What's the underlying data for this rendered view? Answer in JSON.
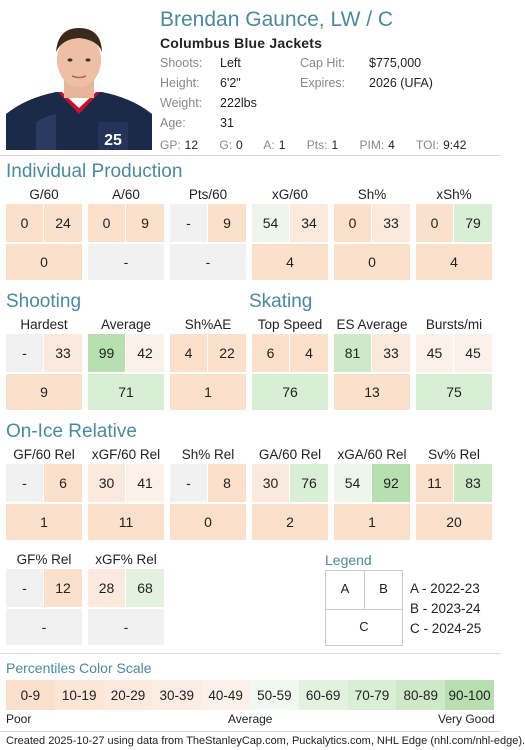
{
  "player": {
    "name": "Brendan Gaunce, LW / C",
    "team": "Columbus Blue Jackets",
    "shoots_label": "Shoots:",
    "shoots": "Left",
    "height_label": "Height:",
    "height": "6'2\"",
    "weight_label": "Weight:",
    "weight": "222lbs",
    "age_label": "Age:",
    "age": "31",
    "caphit_label": "Cap Hit:",
    "caphit": "$775,000",
    "expires_label": "Expires:",
    "expires": "2026 (UFA)",
    "jersey_number": "25"
  },
  "season_stats": {
    "gp_label": "GP:",
    "gp": "12",
    "g_label": "G:",
    "g": "0",
    "a_label": "A:",
    "a": "1",
    "pts_label": "Pts:",
    "pts": "1",
    "pim_label": "PIM:",
    "pim": "4",
    "toi_label": "TOI:",
    "toi": "9:42"
  },
  "sections": {
    "production": "Individual Production",
    "shooting": "Shooting",
    "skating": "Skating",
    "onice": "On-Ice Relative"
  },
  "metrics": {
    "g60": {
      "label": "G/60",
      "a": "0",
      "b": "24",
      "c": "0",
      "ca": "#fbe1cc",
      "cb": "#fbe1cc",
      "cc": "#fbe1cc"
    },
    "a60": {
      "label": "A/60",
      "a": "0",
      "b": "9",
      "c": "-",
      "ca": "#fbe1cc",
      "cb": "#fbe1cc",
      "cc": "#f1f1f1"
    },
    "pts60": {
      "label": "Pts/60",
      "a": "-",
      "b": "9",
      "c": "-",
      "ca": "#f1f1f1",
      "cb": "#fbe1cc",
      "cc": "#f1f1f1"
    },
    "xg60": {
      "label": "xG/60",
      "a": "54",
      "b": "34",
      "c": "4",
      "ca": "#eef5ea",
      "cb": "#fbe9dd",
      "cc": "#fbe1cc"
    },
    "sh": {
      "label": "Sh%",
      "a": "0",
      "b": "33",
      "c": "0",
      "ca": "#fbe1cc",
      "cb": "#fbe9dd",
      "cc": "#fbe1cc"
    },
    "xsh": {
      "label": "xSh%",
      "a": "0",
      "b": "79",
      "c": "4",
      "ca": "#fbe1cc",
      "cb": "#d9efd5",
      "cc": "#fbe1cc"
    },
    "hardest": {
      "label": "Hardest",
      "a": "-",
      "b": "33",
      "c": "9",
      "ca": "#f1f1f1",
      "cb": "#fbe9dd",
      "cc": "#fbe1cc"
    },
    "average": {
      "label": "Average",
      "a": "99",
      "b": "42",
      "c": "71",
      "ca": "#b7dfb0",
      "cb": "#fbf1ea",
      "cc": "#d9efd5"
    },
    "shae": {
      "label": "Sh%AE",
      "a": "4",
      "b": "22",
      "c": "1",
      "ca": "#fbe1cc",
      "cb": "#fbe1cc",
      "cc": "#fbe1cc"
    },
    "topspeed": {
      "label": "Top Speed",
      "a": "6",
      "b": "4",
      "c": "76",
      "ca": "#fbe1cc",
      "cb": "#fbe1cc",
      "cc": "#d9efd5"
    },
    "esavg": {
      "label": "ES Average",
      "a": "81",
      "b": "33",
      "c": "13",
      "ca": "#cde9c7",
      "cb": "#fbe9dd",
      "cc": "#fbe1cc"
    },
    "bursts": {
      "label": "Bursts/mi",
      "a": "45",
      "b": "45",
      "c": "75",
      "ca": "#fbf1ea",
      "cb": "#fbf1ea",
      "cc": "#d9efd5"
    },
    "gf60rel": {
      "label": "GF/60 Rel",
      "a": "-",
      "b": "6",
      "c": "1",
      "ca": "#f1f1f1",
      "cb": "#fbe1cc",
      "cc": "#fbe1cc"
    },
    "xgf60rel": {
      "label": "xGF/60 Rel",
      "a": "30",
      "b": "41",
      "c": "11",
      "ca": "#fbe9dd",
      "cb": "#fbf1ea",
      "cc": "#fbe1cc"
    },
    "shrel": {
      "label": "Sh% Rel",
      "a": "-",
      "b": "8",
      "c": "0",
      "ca": "#f1f1f1",
      "cb": "#fbe1cc",
      "cc": "#fbe1cc"
    },
    "ga60rel": {
      "label": "GA/60 Rel",
      "a": "30",
      "b": "76",
      "c": "2",
      "ca": "#fbe9dd",
      "cb": "#d9efd5",
      "cc": "#fbe1cc"
    },
    "xga60rel": {
      "label": "xGA/60 Rel",
      "a": "54",
      "b": "92",
      "c": "1",
      "ca": "#eef5ea",
      "cb": "#b7dfb0",
      "cc": "#fbe1cc"
    },
    "svrel": {
      "label": "Sv% Rel",
      "a": "11",
      "b": "83",
      "c": "20",
      "ca": "#fbe1cc",
      "cb": "#cde9c7",
      "cc": "#fbe1cc"
    },
    "gfrel": {
      "label": "GF% Rel",
      "a": "-",
      "b": "12",
      "c": "-",
      "ca": "#f1f1f1",
      "cb": "#fbe1cc",
      "cc": "#f1f1f1"
    },
    "xgfrel": {
      "label": "xGF% Rel",
      "a": "28",
      "b": "68",
      "c": "-",
      "ca": "#fbe9dd",
      "cb": "#e3f2df",
      "cc": "#f1f1f1"
    }
  },
  "legend": {
    "title": "Legend",
    "a": "A",
    "b": "B",
    "c": "C",
    "a_text": "A - 2022-23",
    "b_text": "B - 2023-24",
    "c_text": "C - 2024-25"
  },
  "scale": {
    "title": "Percentiles Color Scale",
    "bins": [
      {
        "label": "0-9",
        "color": "#fbe1cc"
      },
      {
        "label": "10-19",
        "color": "#fbe5d5"
      },
      {
        "label": "20-29",
        "color": "#fbe9dd"
      },
      {
        "label": "30-39",
        "color": "#fbede4"
      },
      {
        "label": "40-49",
        "color": "#fbf1ea"
      },
      {
        "label": "50-59",
        "color": "#f3f7f1"
      },
      {
        "label": "60-69",
        "color": "#e3f2df"
      },
      {
        "label": "70-79",
        "color": "#d9efd5"
      },
      {
        "label": "80-89",
        "color": "#cde9c7"
      },
      {
        "label": "90-100",
        "color": "#b7dfb0"
      }
    ],
    "poor": "Poor",
    "average": "Average",
    "very_good": "Very Good"
  },
  "footer": "Created 2025-10-27 using data from TheStanleyCap.com, Puckalytics.com, NHL Edge (nhl.com/nhl-edge)."
}
